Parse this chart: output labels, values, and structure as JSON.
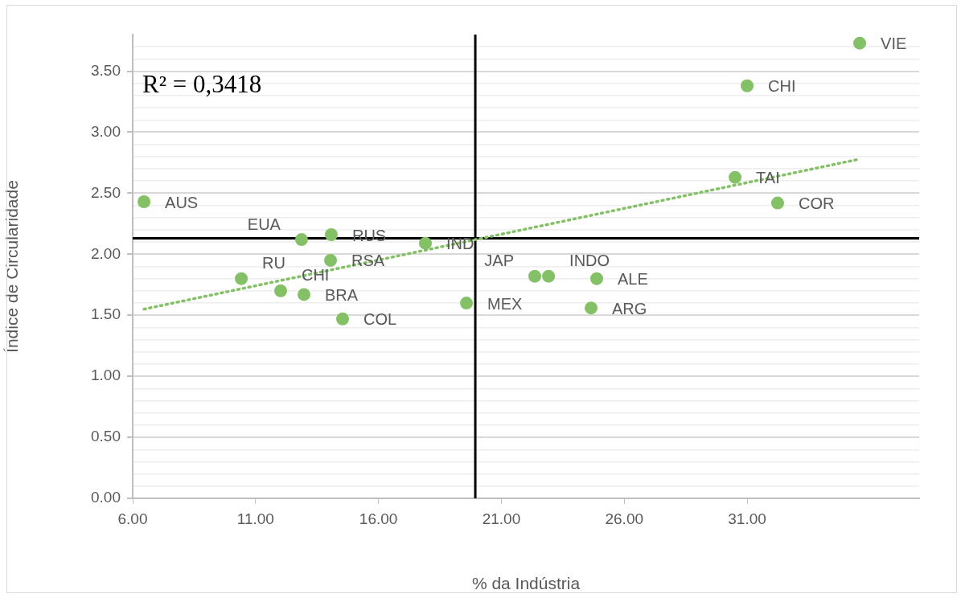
{
  "chart_data": {
    "type": "scatter",
    "xlabel": "% da Indústria",
    "ylabel": "Índice de Circularidade",
    "series": [
      {
        "type": "scatter",
        "color": "#84c166",
        "x": [
          35.58,
          31.0,
          30.51,
          32.24,
          6.46,
          14.08,
          12.87,
          17.91,
          14.05,
          10.42,
          12.02,
          12.97,
          14.54,
          19.58,
          22.36,
          22.92,
          24.88,
          24.65
        ],
        "values": [
          3.73,
          3.38,
          2.63,
          2.42,
          2.43,
          2.16,
          2.12,
          2.09,
          1.95,
          1.8,
          1.7,
          1.67,
          1.47,
          1.6,
          1.82,
          1.82,
          1.8,
          1.56
        ],
        "marker": "circle"
      },
      {
        "type": "line",
        "color": "#84c166",
        "x": [
          6.46,
          35.58
        ],
        "values": [
          1.55,
          2.78
        ],
        "line_style": "dotted",
        "marker": "none"
      }
    ],
    "xlim": [
      6,
      38
    ],
    "xticks": [
      {
        "value": 6,
        "label": "6.00"
      },
      {
        "value": 11,
        "label": "11.00"
      },
      {
        "value": 16,
        "label": "16.00"
      },
      {
        "value": 21,
        "label": "21.00"
      },
      {
        "value": 26,
        "label": "26.00"
      },
      {
        "value": 31,
        "label": "31.00"
      }
    ],
    "ylim": [
      0,
      3.8
    ],
    "yticks": [
      {
        "value": 0,
        "label": "0.00"
      },
      {
        "value": 0.1,
        "label": null
      },
      {
        "value": 0.2,
        "label": null
      },
      {
        "value": 0.3,
        "label": null
      },
      {
        "value": 0.4,
        "label": null
      },
      {
        "value": 0.5,
        "label": "0.50"
      },
      {
        "value": 0.6,
        "label": null
      },
      {
        "value": 0.7,
        "label": null
      },
      {
        "value": 0.8,
        "label": null
      },
      {
        "value": 0.9,
        "label": null
      },
      {
        "value": 1,
        "label": "1.00"
      },
      {
        "value": 1.1,
        "label": null
      },
      {
        "value": 1.2,
        "label": null
      },
      {
        "value": 1.3,
        "label": null
      },
      {
        "value": 1.4,
        "label": null
      },
      {
        "value": 1.5,
        "label": "1.50"
      },
      {
        "value": 1.6,
        "label": null
      },
      {
        "value": 1.7,
        "label": null
      },
      {
        "value": 1.8,
        "label": null
      },
      {
        "value": 1.9,
        "label": null
      },
      {
        "value": 2,
        "label": "2.00"
      },
      {
        "value": 2.1,
        "label": null
      },
      {
        "value": 2.2,
        "label": null
      },
      {
        "value": 2.3,
        "label": null
      },
      {
        "value": 2.4,
        "label": null
      },
      {
        "value": 2.5,
        "label": "2.50"
      },
      {
        "value": 2.6,
        "label": null
      },
      {
        "value": 2.7,
        "label": null
      },
      {
        "value": 2.8,
        "label": null
      },
      {
        "value": 2.9,
        "label": null
      },
      {
        "value": 3,
        "label": "3.00"
      },
      {
        "value": 3.1,
        "label": null
      },
      {
        "value": 3.2,
        "label": null
      },
      {
        "value": 3.3,
        "label": null
      },
      {
        "value": 3.4,
        "label": null
      },
      {
        "value": 3.5,
        "label": "3.50"
      },
      {
        "value": 3.6,
        "label": null
      },
      {
        "value": 3.7,
        "label": null
      }
    ],
    "grid": "y",
    "legend": false,
    "ref_lines": [
      {
        "axis": "x",
        "value": 19.94,
        "label": null,
        "color": "#000000"
      },
      {
        "axis": "y",
        "value": 2.13,
        "label": null,
        "color": "#000000"
      }
    ],
    "annotations": [
      "R² = 0,3418",
      {
        "text": "VIE",
        "x": 35.58,
        "y": 3.73
      },
      {
        "text": "CHI",
        "x": 31.0,
        "y": 3.38
      },
      {
        "text": "TAI",
        "x": 30.51,
        "y": 2.63
      },
      {
        "text": "COR",
        "x": 32.24,
        "y": 2.42
      },
      {
        "text": "AUS",
        "x": 6.46,
        "y": 2.43
      },
      {
        "text": "RUS",
        "x": 14.08,
        "y": 2.16
      },
      {
        "text": "EUA",
        "x": 12.87,
        "y": 2.12
      },
      {
        "text": "IND",
        "x": 17.91,
        "y": 2.09
      },
      {
        "text": "RSA",
        "x": 14.05,
        "y": 1.95
      },
      {
        "text": "RU",
        "x": 10.42,
        "y": 1.8
      },
      {
        "text": "CHI",
        "x": 12.02,
        "y": 1.7
      },
      {
        "text": "BRA",
        "x": 12.97,
        "y": 1.67
      },
      {
        "text": "COL",
        "x": 14.54,
        "y": 1.47
      },
      {
        "text": "MEX",
        "x": 19.58,
        "y": 1.6
      },
      {
        "text": "JAP",
        "x": 22.36,
        "y": 1.82
      },
      {
        "text": "INDO",
        "x": 22.92,
        "y": 1.82
      },
      {
        "text": "ALE",
        "x": 24.88,
        "y": 1.8
      },
      {
        "text": "ARG",
        "x": 24.65,
        "y": 1.56
      }
    ]
  }
}
